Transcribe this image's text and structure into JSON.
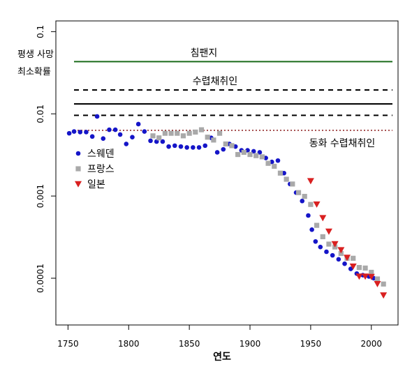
{
  "chart_data": {
    "type": "scatter",
    "title": "",
    "xlabel": "연도",
    "ylabel": "평생 사망 최소확률",
    "ylabel_lines": [
      "평생 사망",
      "최소확률"
    ],
    "y_scale": "log",
    "xlim": [
      1740,
      2022
    ],
    "ylim": [
      2.7e-05,
      0.135
    ],
    "x_ticks": [
      {
        "value": 1750,
        "label": "1750"
      },
      {
        "value": 1800,
        "label": "1800"
      },
      {
        "value": 1850,
        "label": "1850"
      },
      {
        "value": 1900,
        "label": "1900"
      },
      {
        "value": 1950,
        "label": "1950"
      },
      {
        "value": 2000,
        "label": "2000"
      }
    ],
    "y_ticks": [
      {
        "value": 0.1,
        "label": "0.1"
      },
      {
        "value": 0.01,
        "label": "0.01"
      },
      {
        "value": 0.001,
        "label": "0.001"
      },
      {
        "value": 0.0001,
        "label": "0.0001"
      }
    ],
    "reference_lines": [
      {
        "name": "chimp",
        "label": "침팬지",
        "y": 0.0432,
        "style": "solid",
        "color": "#1a6b1a"
      },
      {
        "name": "hg-upper",
        "label": "수렵채취인",
        "y": 0.0195,
        "style": "dashed",
        "color": "#000000"
      },
      {
        "name": "hg-mid",
        "label": "",
        "y": 0.0132,
        "style": "solid",
        "color": "#000000"
      },
      {
        "name": "hg-lower",
        "label": "",
        "y": 0.0096,
        "style": "dashed",
        "color": "#000000"
      },
      {
        "name": "acculturated",
        "label": "동화 수렵채취인",
        "y": 0.0063,
        "style": "dotted",
        "color": "#8b1a1a"
      }
    ],
    "legend": {
      "position": "left",
      "entries": [
        {
          "label": "스웨덴",
          "series": "sweden"
        },
        {
          "label": "프랑스",
          "series": "france"
        },
        {
          "label": "일본",
          "series": "japan"
        }
      ]
    },
    "series": [
      {
        "key": "sweden",
        "marker": "circle",
        "color": "#1515c8",
        "points": [
          [
            1751,
            0.0058
          ],
          [
            1755,
            0.0061
          ],
          [
            1760,
            0.006
          ],
          [
            1765,
            0.006
          ],
          [
            1770,
            0.0053
          ],
          [
            1774,
            0.0093
          ],
          [
            1779,
            0.005
          ],
          [
            1784,
            0.0064
          ],
          [
            1789,
            0.0064
          ],
          [
            1793,
            0.0056
          ],
          [
            1798,
            0.0043
          ],
          [
            1803,
            0.0052
          ],
          [
            1808,
            0.0075
          ],
          [
            1813,
            0.0061
          ],
          [
            1818,
            0.0047
          ],
          [
            1823,
            0.0046
          ],
          [
            1828,
            0.0046
          ],
          [
            1833,
            0.004
          ],
          [
            1838,
            0.0041
          ],
          [
            1843,
            0.004
          ],
          [
            1848,
            0.0039
          ],
          [
            1853,
            0.0039
          ],
          [
            1858,
            0.0039
          ],
          [
            1863,
            0.0041
          ],
          [
            1868,
            0.0051
          ],
          [
            1873,
            0.0034
          ],
          [
            1878,
            0.0037
          ],
          [
            1883,
            0.0043
          ],
          [
            1888,
            0.004
          ],
          [
            1893,
            0.0036
          ],
          [
            1898,
            0.0036
          ],
          [
            1903,
            0.0035
          ],
          [
            1908,
            0.0034
          ],
          [
            1913,
            0.0029
          ],
          [
            1918,
            0.0026
          ],
          [
            1923,
            0.0027
          ],
          [
            1928,
            0.0019
          ],
          [
            1933,
            0.0014
          ],
          [
            1938,
            0.0011
          ],
          [
            1943,
            0.00087
          ],
          [
            1948,
            0.00058
          ],
          [
            1951,
            0.00039
          ],
          [
            1954,
            0.00028
          ],
          [
            1958,
            0.00024
          ],
          [
            1963,
            0.00021
          ],
          [
            1968,
            0.00019
          ],
          [
            1973,
            0.00017
          ],
          [
            1978,
            0.00015
          ],
          [
            1983,
            0.00013
          ],
          [
            1988,
            0.000114
          ],
          [
            1993,
            0.000109
          ],
          [
            1998,
            0.000105
          ],
          [
            2002,
            0.0001
          ]
        ]
      },
      {
        "key": "france",
        "marker": "square",
        "color": "#a9a9a9",
        "points": [
          [
            1820,
            0.0054
          ],
          [
            1825,
            0.0051
          ],
          [
            1830,
            0.0058
          ],
          [
            1835,
            0.0058
          ],
          [
            1840,
            0.0058
          ],
          [
            1845,
            0.0054
          ],
          [
            1850,
            0.0058
          ],
          [
            1855,
            0.006
          ],
          [
            1860,
            0.0064
          ],
          [
            1865,
            0.0052
          ],
          [
            1870,
            0.0048
          ],
          [
            1875,
            0.0058
          ],
          [
            1880,
            0.0043
          ],
          [
            1885,
            0.0041
          ],
          [
            1890,
            0.0032
          ],
          [
            1895,
            0.0034
          ],
          [
            1900,
            0.0032
          ],
          [
            1905,
            0.0031
          ],
          [
            1910,
            0.003
          ],
          [
            1915,
            0.0025
          ],
          [
            1920,
            0.0023
          ],
          [
            1925,
            0.0019
          ],
          [
            1930,
            0.0016
          ],
          [
            1935,
            0.0014
          ],
          [
            1940,
            0.0011
          ],
          [
            1945,
            0.00099
          ],
          [
            1950,
            0.00079
          ],
          [
            1955,
            0.00044
          ],
          [
            1960,
            0.00032
          ],
          [
            1965,
            0.00026
          ],
          [
            1970,
            0.00024
          ],
          [
            1975,
            0.0002
          ],
          [
            1980,
            0.000175
          ],
          [
            1985,
            0.000175
          ],
          [
            1990,
            0.000135
          ],
          [
            1995,
            0.000133
          ],
          [
            2000,
            0.000118
          ],
          [
            2005,
            9.8e-05
          ],
          [
            2010,
            8.5e-05
          ]
        ]
      },
      {
        "key": "japan",
        "marker": "triangle",
        "color": "#d92020",
        "points": [
          [
            1950,
            0.00152
          ],
          [
            1955,
            0.00079
          ],
          [
            1960,
            0.00054
          ],
          [
            1965,
            0.00037
          ],
          [
            1970,
            0.00026
          ],
          [
            1975,
            0.00022
          ],
          [
            1980,
            0.000178
          ],
          [
            1985,
            0.000139
          ],
          [
            1990,
            0.000105
          ],
          [
            1995,
            0.000105
          ],
          [
            2000,
            0.000104
          ],
          [
            2005,
            8.5e-05
          ],
          [
            2010,
            6.2e-05
          ]
        ]
      }
    ]
  }
}
